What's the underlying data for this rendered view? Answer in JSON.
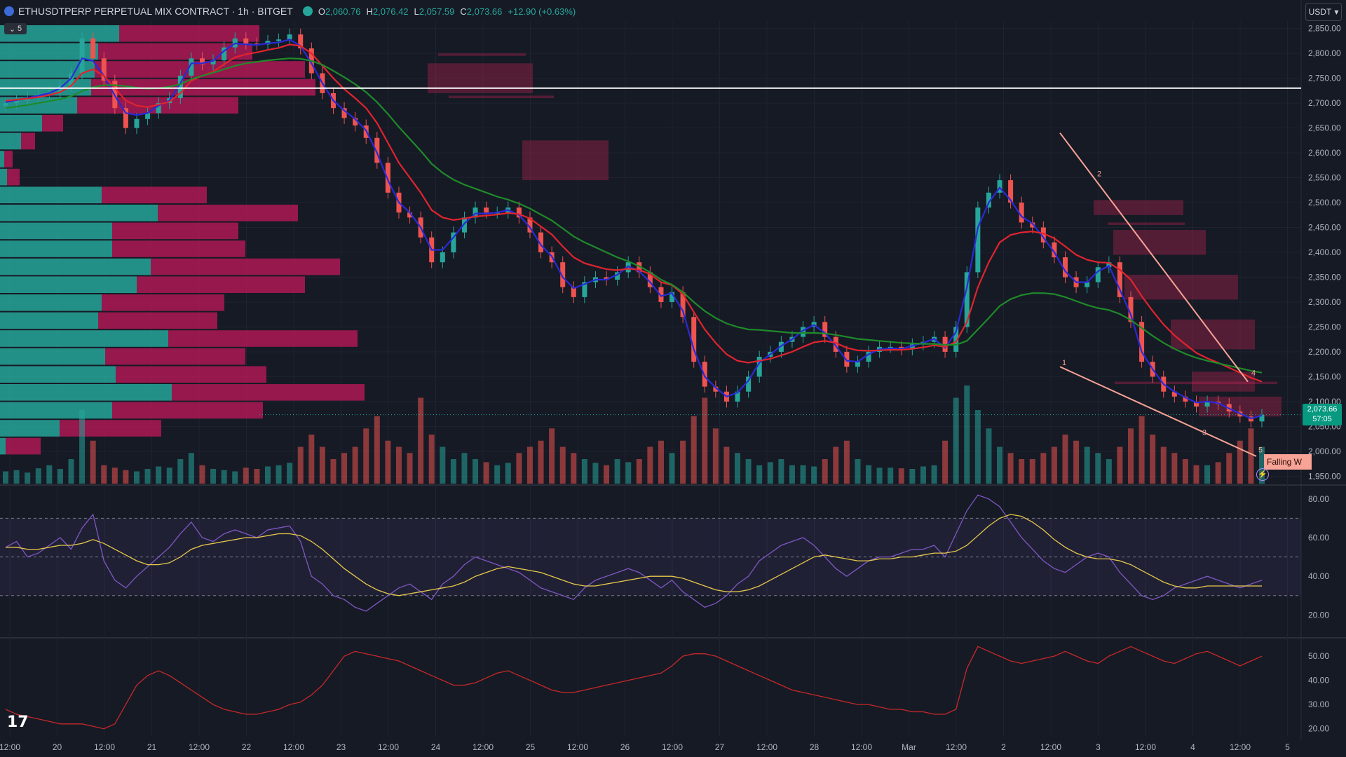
{
  "header": {
    "symbol": "ETHUSDTPERP PERPETUAL MIX CONTRACT · 1h · BITGET",
    "ohlc": [
      {
        "k": "O",
        "v": "2,060.76"
      },
      {
        "k": "H",
        "v": "2,076.42"
      },
      {
        "k": "L",
        "v": "2,057.59"
      },
      {
        "k": "C",
        "v": "2,073.66"
      },
      {
        "k": "",
        "v": "+12.90 (+0.63%)"
      }
    ],
    "collapse_count": "5",
    "currency": "USDT"
  },
  "price_label": {
    "price": "2,073.66",
    "countdown": "57:05"
  },
  "pattern_label": "Falling W",
  "colors": {
    "bg": "#161a25",
    "up": "#26a69a",
    "down": "#ef5350",
    "ema_fast": "#2a2ad8",
    "ema_mid": "#e0242e",
    "ema_slow": "#1f8a2a",
    "rsi": "#7e57c2",
    "rsi_ma": "#e6c94a",
    "oscillator": "#c62828"
  },
  "chart_data": [
    {
      "type": "line",
      "panel": "price",
      "title": "ETHUSDTPERP PERPETUAL MIX CONTRACT · 1h · BITGET",
      "x_ticks": [
        "12:00",
        "20",
        "12:00",
        "21",
        "12:00",
        "22",
        "12:00",
        "23",
        "12:00",
        "24",
        "12:00",
        "25",
        "12:00",
        "26",
        "12:00",
        "27",
        "12:00",
        "28",
        "12:00",
        "Mar",
        "12:00",
        "2",
        "12:00",
        "3",
        "12:00",
        "4",
        "12:00",
        "5"
      ],
      "y_ticks": [
        "2,850.00",
        "2,800.00",
        "2,750.00",
        "2,700.00",
        "2,650.00",
        "2,600.00",
        "2,550.00",
        "2,500.00",
        "2,450.00",
        "2,400.00",
        "2,350.00",
        "2,300.00",
        "2,250.00",
        "2,200.00",
        "2,150.00",
        "2,100.00",
        "2,050.00",
        "2,000.00",
        "1,950.00"
      ],
      "ylim": [
        1935,
        2865
      ],
      "horizontal_line": 2730,
      "series": [
        {
          "values": [
            2700,
            2705,
            2712,
            2718,
            2722,
            2735,
            2760,
            2830,
            2790,
            2745,
            2690,
            2650,
            2668,
            2680,
            2700,
            2710,
            2755,
            2790,
            2778,
            2786,
            2812,
            2830,
            2820,
            2818,
            2825,
            2828,
            2838,
            2810,
            2760,
            2720,
            2690,
            2670,
            2655,
            2630,
            2580,
            2520,
            2480,
            2470,
            2430,
            2380,
            2400,
            2440,
            2470,
            2490,
            2480,
            2480,
            2490,
            2470,
            2440,
            2400,
            2380,
            2330,
            2310,
            2340,
            2350,
            2345,
            2360,
            2380,
            2360,
            2330,
            2300,
            2320,
            2270,
            2180,
            2130,
            2120,
            2100,
            2120,
            2150,
            2190,
            2200,
            2220,
            2230,
            2250,
            2260,
            2230,
            2200,
            2170,
            2180,
            2200,
            2210,
            2210,
            2205,
            2215,
            2220,
            2230,
            2200,
            2250,
            2360,
            2490,
            2520,
            2545,
            2500,
            2460,
            2450,
            2420,
            2390,
            2350,
            2330,
            2340,
            2370,
            2380,
            2310,
            2260,
            2180,
            2150,
            2120,
            2110,
            2100,
            2090,
            2100,
            2095,
            2080,
            2070,
            2060,
            2073
          ]
        },
        {
          "name": "EMA fast",
          "values": [
            2702,
            2706,
            2710,
            2715,
            2720,
            2730,
            2750,
            2790,
            2785,
            2755,
            2715,
            2680,
            2676,
            2680,
            2695,
            2705,
            2740,
            2780,
            2780,
            2785,
            2805,
            2820,
            2818,
            2817,
            2820,
            2822,
            2828,
            2815,
            2780,
            2740,
            2705,
            2685,
            2668,
            2645,
            2600,
            2545,
            2500,
            2480,
            2450,
            2405,
            2405,
            2430,
            2458,
            2478,
            2478,
            2480,
            2485,
            2475,
            2450,
            2415,
            2392,
            2350,
            2328,
            2336,
            2345,
            2345,
            2355,
            2372,
            2362,
            2340,
            2312,
            2318,
            2282,
            2205,
            2150,
            2128,
            2110,
            2118,
            2142,
            2178,
            2195,
            2212,
            2225,
            2243,
            2254,
            2238,
            2212,
            2182,
            2180,
            2195,
            2205,
            2207,
            2206,
            2212,
            2218,
            2226,
            2208,
            2240,
            2330,
            2450,
            2500,
            2530,
            2505,
            2472,
            2458,
            2430,
            2400,
            2362,
            2340,
            2340,
            2362,
            2373,
            2325,
            2275,
            2200,
            2165,
            2135,
            2120,
            2108,
            2098,
            2100,
            2097,
            2086,
            2076,
            2066,
            2072
          ]
        },
        {
          "name": "EMA mid",
          "values": [
            2705,
            2707,
            2709,
            2712,
            2716,
            2722,
            2735,
            2760,
            2768,
            2755,
            2730,
            2705,
            2695,
            2692,
            2697,
            2703,
            2720,
            2745,
            2755,
            2763,
            2778,
            2792,
            2798,
            2802,
            2807,
            2811,
            2818,
            2815,
            2800,
            2775,
            2750,
            2728,
            2710,
            2690,
            2660,
            2620,
            2580,
            2550,
            2520,
            2485,
            2470,
            2465,
            2468,
            2472,
            2474,
            2476,
            2479,
            2477,
            2468,
            2452,
            2436,
            2412,
            2390,
            2378,
            2372,
            2366,
            2364,
            2367,
            2365,
            2356,
            2340,
            2334,
            2316,
            2280,
            2245,
            2218,
            2195,
            2182,
            2178,
            2182,
            2186,
            2193,
            2200,
            2210,
            2219,
            2222,
            2218,
            2208,
            2203,
            2202,
            2203,
            2204,
            2204,
            2206,
            2209,
            2213,
            2210,
            2220,
            2260,
            2330,
            2380,
            2420,
            2435,
            2440,
            2442,
            2438,
            2428,
            2412,
            2395,
            2385,
            2380,
            2379,
            2365,
            2345,
            2312,
            2282,
            2255,
            2233,
            2215,
            2198,
            2187,
            2178,
            2168,
            2158,
            2148,
            2140
          ]
        },
        {
          "name": "EMA slow",
          "values": [
            2690,
            2693,
            2696,
            2700,
            2704,
            2708,
            2714,
            2724,
            2732,
            2736,
            2736,
            2734,
            2731,
            2729,
            2730,
            2733,
            2738,
            2748,
            2755,
            2761,
            2768,
            2775,
            2780,
            2783,
            2786,
            2788,
            2790,
            2789,
            2785,
            2777,
            2765,
            2752,
            2738,
            2722,
            2702,
            2678,
            2652,
            2628,
            2604,
            2578,
            2560,
            2546,
            2536,
            2528,
            2520,
            2512,
            2506,
            2498,
            2488,
            2476,
            2464,
            2448,
            2432,
            2420,
            2410,
            2400,
            2390,
            2382,
            2372,
            2360,
            2345,
            2335,
            2320,
            2300,
            2282,
            2268,
            2257,
            2250,
            2245,
            2244,
            2242,
            2240,
            2238,
            2238,
            2238,
            2237,
            2234,
            2230,
            2226,
            2224,
            2222,
            2220,
            2218,
            2217,
            2216,
            2216,
            2214,
            2214,
            2222,
            2245,
            2268,
            2292,
            2306,
            2314,
            2318,
            2318,
            2316,
            2310,
            2302,
            2294,
            2288,
            2284,
            2276,
            2264,
            2248,
            2232,
            2218,
            2206,
            2196,
            2188,
            2182,
            2177,
            2172,
            2167,
            2162,
            2158
          ]
        }
      ],
      "volume": [
        20,
        22,
        18,
        25,
        30,
        24,
        40,
        120,
        70,
        30,
        26,
        22,
        20,
        24,
        28,
        26,
        40,
        50,
        30,
        24,
        22,
        20,
        26,
        24,
        28,
        30,
        34,
        60,
        80,
        60,
        40,
        50,
        60,
        90,
        110,
        70,
        60,
        50,
        140,
        80,
        60,
        40,
        50,
        40,
        35,
        30,
        34,
        50,
        60,
        70,
        90,
        60,
        50,
        40,
        34,
        30,
        40,
        35,
        40,
        60,
        70,
        50,
        70,
        110,
        140,
        90,
        60,
        50,
        40,
        30,
        35,
        40,
        30,
        30,
        28,
        40,
        60,
        70,
        40,
        30,
        26,
        26,
        25,
        24,
        28,
        30,
        70,
        140,
        160,
        120,
        90,
        60,
        50,
        40,
        40,
        50,
        60,
        80,
        70,
        60,
        50,
        40,
        60,
        90,
        110,
        80,
        60,
        50,
        40,
        30,
        30,
        35,
        50,
        70,
        90,
        60
      ]
    },
    {
      "type": "line",
      "panel": "rsi",
      "y_ticks": [
        "80.00",
        "60.00",
        "40.00",
        "20.00"
      ],
      "ylim": [
        10,
        85
      ],
      "bands": [
        70,
        50,
        30
      ],
      "series": [
        {
          "values": [
            55,
            58,
            50,
            52,
            56,
            60,
            54,
            65,
            72,
            48,
            38,
            34,
            40,
            45,
            50,
            55,
            62,
            68,
            60,
            58,
            62,
            64,
            62,
            60,
            64,
            65,
            66,
            58,
            40,
            36,
            30,
            28,
            24,
            22,
            26,
            30,
            34,
            36,
            32,
            28,
            36,
            40,
            46,
            50,
            48,
            46,
            44,
            42,
            38,
            34,
            32,
            30,
            28,
            34,
            38,
            40,
            42,
            44,
            42,
            38,
            34,
            38,
            32,
            28,
            24,
            26,
            30,
            36,
            40,
            48,
            52,
            56,
            58,
            60,
            56,
            50,
            44,
            40,
            44,
            48,
            50,
            50,
            52,
            54,
            54,
            56,
            50,
            62,
            74,
            82,
            80,
            76,
            68,
            60,
            54,
            48,
            44,
            42,
            46,
            50,
            52,
            50,
            42,
            36,
            30,
            28,
            30,
            34,
            36,
            38,
            40,
            38,
            36,
            34,
            36,
            38
          ]
        },
        {
          "name": "RSI MA",
          "values": [
            55,
            55,
            54,
            54,
            55,
            56,
            56,
            57,
            59,
            57,
            54,
            51,
            48,
            46,
            46,
            47,
            50,
            54,
            56,
            57,
            58,
            59,
            60,
            60,
            61,
            62,
            62,
            61,
            58,
            54,
            49,
            44,
            40,
            36,
            33,
            31,
            30,
            31,
            32,
            33,
            34,
            35,
            37,
            40,
            42,
            44,
            45,
            44,
            43,
            42,
            40,
            38,
            36,
            35,
            35,
            36,
            37,
            38,
            39,
            40,
            40,
            40,
            39,
            37,
            35,
            33,
            32,
            32,
            33,
            35,
            38,
            41,
            44,
            47,
            50,
            51,
            50,
            49,
            48,
            48,
            49,
            49,
            50,
            50,
            51,
            52,
            52,
            53,
            56,
            61,
            66,
            70,
            72,
            71,
            68,
            64,
            59,
            55,
            52,
            50,
            49,
            49,
            48,
            46,
            43,
            40,
            37,
            35,
            34,
            34,
            35,
            35,
            35,
            35,
            35,
            35
          ]
        }
      ]
    },
    {
      "type": "line",
      "panel": "oscillator",
      "y_ticks": [
        "50.00",
        "40.00",
        "30.00",
        "20.00"
      ],
      "ylim": [
        17,
        57
      ],
      "series": [
        {
          "values": [
            28,
            26,
            25,
            24,
            23,
            22,
            22,
            22,
            21,
            20,
            22,
            30,
            38,
            42,
            44,
            42,
            39,
            36,
            33,
            30,
            28,
            27,
            26,
            26,
            27,
            28,
            30,
            31,
            34,
            38,
            44,
            50,
            52,
            51,
            50,
            49,
            48,
            46,
            44,
            42,
            40,
            38,
            38,
            39,
            41,
            43,
            44,
            42,
            40,
            38,
            36,
            35,
            35,
            36,
            37,
            38,
            39,
            40,
            41,
            42,
            43,
            46,
            50,
            51,
            51,
            50,
            48,
            46,
            44,
            42,
            40,
            38,
            36,
            35,
            34,
            33,
            32,
            31,
            30,
            30,
            29,
            28,
            28,
            27,
            27,
            26,
            26,
            28,
            45,
            54,
            52,
            50,
            48,
            47,
            48,
            49,
            50,
            52,
            50,
            48,
            47,
            50,
            52,
            54,
            52,
            50,
            48,
            47,
            49,
            51,
            52,
            50,
            48,
            46,
            48,
            50
          ]
        }
      ]
    }
  ]
}
